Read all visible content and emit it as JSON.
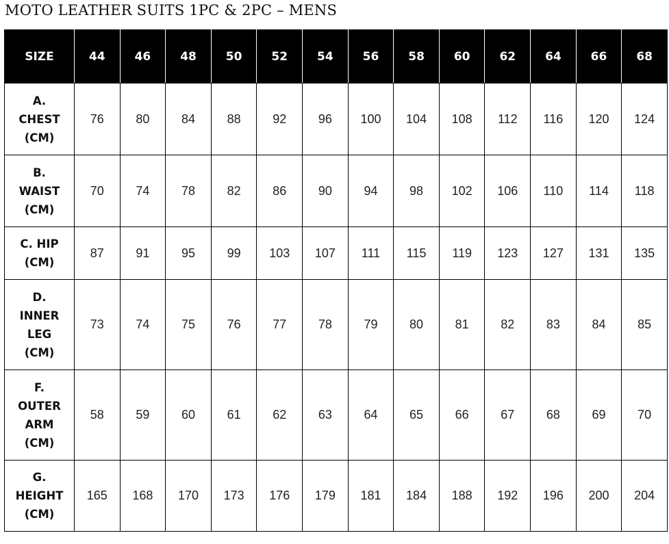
{
  "title": "MOTO LEATHER SUITS 1PC & 2PC – MENS",
  "table": {
    "header_label": "SIZE",
    "sizes": [
      "44",
      "46",
      "48",
      "50",
      "52",
      "54",
      "56",
      "58",
      "60",
      "62",
      "64",
      "66",
      "68"
    ],
    "rows": [
      {
        "label": "A.\nCHEST\n(CM)",
        "values": [
          "76",
          "80",
          "84",
          "88",
          "92",
          "96",
          "100",
          "104",
          "108",
          "112",
          "116",
          "120",
          "124"
        ]
      },
      {
        "label": "B.\nWAIST\n(CM)",
        "values": [
          "70",
          "74",
          "78",
          "82",
          "86",
          "90",
          "94",
          "98",
          "102",
          "106",
          "110",
          "114",
          "118"
        ]
      },
      {
        "label": "C. HIP\n(CM)",
        "values": [
          "87",
          "91",
          "95",
          "99",
          "103",
          "107",
          "111",
          "115",
          "119",
          "123",
          "127",
          "131",
          "135"
        ]
      },
      {
        "label": "D.\nINNER\nLEG\n(CM)",
        "values": [
          "73",
          "74",
          "75",
          "76",
          "77",
          "78",
          "79",
          "80",
          "81",
          "82",
          "83",
          "84",
          "85"
        ]
      },
      {
        "label": "F.\nOUTER\nARM\n(CM)",
        "values": [
          "58",
          "59",
          "60",
          "61",
          "62",
          "63",
          "64",
          "65",
          "66",
          "67",
          "68",
          "69",
          "70"
        ]
      },
      {
        "label": "G.\nHEIGHT\n(CM)",
        "values": [
          "165",
          "168",
          "170",
          "173",
          "176",
          "179",
          "181",
          "184",
          "188",
          "192",
          "196",
          "200",
          "204"
        ]
      }
    ]
  }
}
